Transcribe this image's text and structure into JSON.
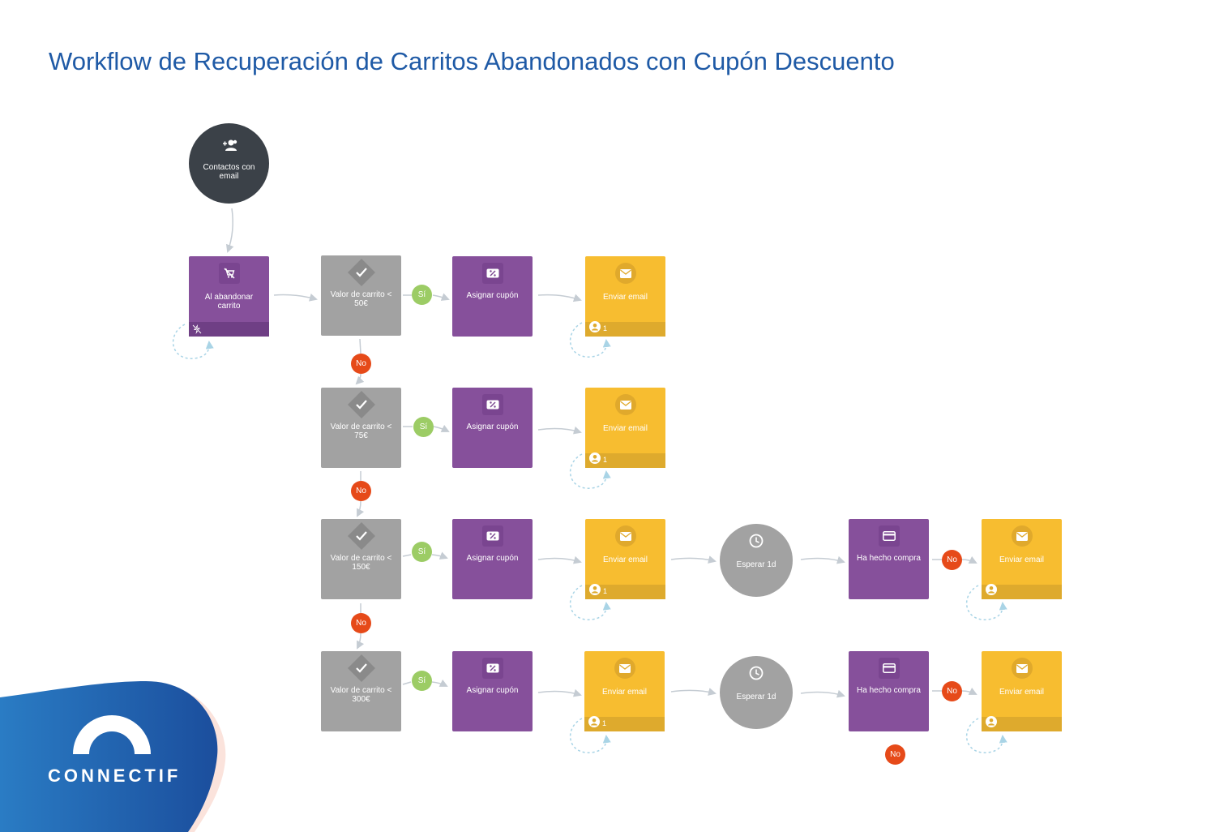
{
  "title": "Workflow de Recuperación de Carritos Abandonados con Cupón Descuento",
  "brand": "CONNECTIF",
  "start": {
    "label": "Contactos con email",
    "icon": "add-contact-icon"
  },
  "trigger": {
    "label": "Al abandonar carrito",
    "icon": "abandoned-cart-icon"
  },
  "conditions": [
    {
      "label": "Valor de carrito < 50€"
    },
    {
      "label": "Valor de carrito < 75€"
    },
    {
      "label": "Valor de carrito < 150€"
    },
    {
      "label": "Valor de carrito < 300€"
    }
  ],
  "coupon": {
    "label": "Asignar cupón",
    "icon": "coupon-icon"
  },
  "email": {
    "label": "Enviar email",
    "icon": "email-icon",
    "count": "1"
  },
  "wait": {
    "label": "Esperar 1d",
    "icon": "clock-icon"
  },
  "purchase": {
    "label": "Ha hecho compra",
    "icon": "credit-card-icon"
  },
  "yes_label": "Sí",
  "no_label": "No",
  "colors": {
    "title": "#1f5aa6",
    "action": "#86509b",
    "condition": "#a2a2a2",
    "email": "#f7bd30",
    "start": "#3b4148",
    "yes": "#9ccc65",
    "no": "#e64a19",
    "brand": "#1f5aa6"
  }
}
